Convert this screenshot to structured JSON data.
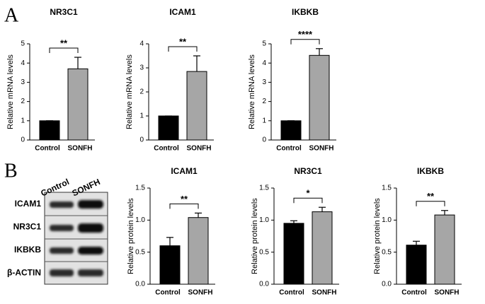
{
  "panel_labels": [
    "A",
    "B"
  ],
  "blot": {
    "columns": [
      "Control",
      "SONFH"
    ],
    "rows": [
      "ICAM1",
      "NR3C1",
      "IKBKB",
      "β-ACTIN"
    ]
  },
  "chart_data": [
    {
      "type": "bar",
      "title": "NR3C1",
      "y_label": "Relative mRNA levels",
      "categories": [
        "Control",
        "SONFH"
      ],
      "values": [
        1,
        3.7
      ],
      "errors": [
        0,
        0.6
      ],
      "colors": [
        "#000000",
        "#a6a6a6"
      ],
      "ylim": [
        0,
        5
      ],
      "yticks": [
        0,
        1,
        2,
        3,
        4,
        5
      ],
      "annotation": "**"
    },
    {
      "type": "bar",
      "title": "ICAM1",
      "y_label": "Relative mRNA levels",
      "categories": [
        "Control",
        "SONFH"
      ],
      "values": [
        1,
        2.85
      ],
      "errors": [
        0,
        0.65
      ],
      "colors": [
        "#000000",
        "#a6a6a6"
      ],
      "ylim": [
        0,
        4
      ],
      "yticks": [
        0,
        1,
        2,
        3,
        4
      ],
      "annotation": "**"
    },
    {
      "type": "bar",
      "title": "IKBKB",
      "y_label": "Relative mRNA levels",
      "categories": [
        "Control",
        "SONFH"
      ],
      "values": [
        1,
        4.4
      ],
      "errors": [
        0,
        0.35
      ],
      "colors": [
        "#000000",
        "#a6a6a6"
      ],
      "ylim": [
        0,
        5
      ],
      "yticks": [
        0,
        1,
        2,
        3,
        4,
        5
      ],
      "annotation": "****"
    },
    {
      "type": "bar",
      "title": "ICAM1",
      "y_label": "Relative protein levels",
      "categories": [
        "Control",
        "SONFH"
      ],
      "values": [
        0.6,
        1.04
      ],
      "errors": [
        0.13,
        0.07
      ],
      "colors": [
        "#000000",
        "#a6a6a6"
      ],
      "ylim": [
        0,
        1.5
      ],
      "yticks": [
        {
          "value": 0,
          "label": "0.0"
        },
        0.5,
        {
          "value": 1,
          "label": "1.0"
        },
        1.5
      ],
      "annotation": "**"
    },
    {
      "type": "bar",
      "title": "NR3C1",
      "y_label": "Relative protein levels",
      "categories": [
        "Control",
        "SONFH"
      ],
      "values": [
        0.95,
        1.13
      ],
      "errors": [
        0.04,
        0.07
      ],
      "colors": [
        "#000000",
        "#a6a6a6"
      ],
      "ylim": [
        0,
        1.5
      ],
      "yticks": [
        {
          "value": 0,
          "label": "0.0"
        },
        0.5,
        {
          "value": 1,
          "label": "1.0"
        },
        1.5
      ],
      "annotation": "*"
    },
    {
      "type": "bar",
      "title": "IKBKB",
      "y_label": "Relative protein levels",
      "categories": [
        "Control",
        "SONFH"
      ],
      "values": [
        0.61,
        1.08
      ],
      "errors": [
        0.06,
        0.07
      ],
      "colors": [
        "#000000",
        "#a6a6a6"
      ],
      "ylim": [
        0,
        1.5
      ],
      "yticks": [
        {
          "value": 0,
          "label": "0.0"
        },
        0.5,
        {
          "value": 1,
          "label": "1.0"
        },
        1.5
      ],
      "annotation": "**"
    }
  ]
}
